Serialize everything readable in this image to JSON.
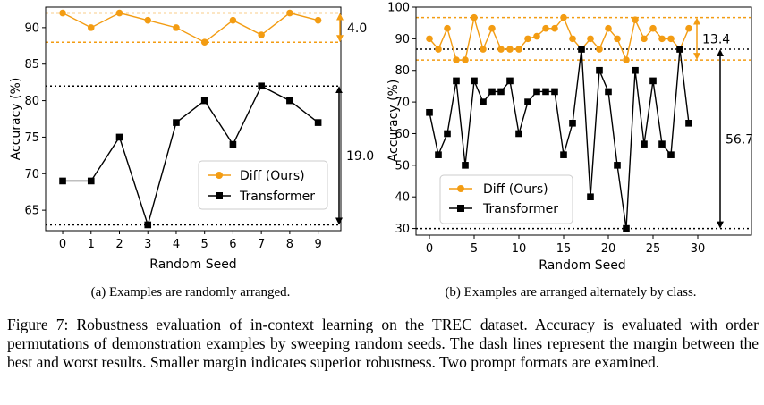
{
  "colors": {
    "diff": "#f39c12",
    "transformer": "#000000"
  },
  "chart_data": [
    {
      "type": "line",
      "xlabel": "Random Seed",
      "ylabel": "Accuracy (%)",
      "xlim": [
        -0.6,
        9.8
      ],
      "ylim": [
        62.2,
        92.8
      ],
      "xticks": [
        0,
        1,
        2,
        3,
        4,
        5,
        6,
        7,
        8,
        9
      ],
      "yticks": [
        65,
        70,
        75,
        80,
        85,
        90
      ],
      "series": [
        {
          "name": "Diff (Ours)",
          "marker": "circle",
          "color": "#f39c12",
          "x": [
            0,
            1,
            2,
            3,
            4,
            5,
            6,
            7,
            8,
            9
          ],
          "values": [
            92,
            90,
            92,
            91,
            90,
            88,
            91,
            89,
            92,
            91
          ]
        },
        {
          "name": "Transformer",
          "marker": "square",
          "color": "#000000",
          "x": [
            0,
            1,
            2,
            3,
            4,
            5,
            6,
            7,
            8,
            9
          ],
          "values": [
            69,
            69,
            75,
            63,
            77,
            80,
            74,
            82,
            80,
            77
          ]
        }
      ],
      "margins": [
        {
          "series": "Diff (Ours)",
          "best": 92,
          "worst": 88,
          "label": "4.0"
        },
        {
          "series": "Transformer",
          "best": 82,
          "worst": 63,
          "label": "19.0"
        }
      ],
      "legend": "center-right",
      "subcaption": "(a) Examples are randomly arranged."
    },
    {
      "type": "line",
      "xlabel": "Random Seed",
      "ylabel": "Accuracy (%)",
      "xlim": [
        -1.5,
        36
      ],
      "ylim": [
        27.9,
        100
      ],
      "xticks": [
        0,
        5,
        10,
        15,
        20,
        25,
        30
      ],
      "yticks": [
        30,
        40,
        50,
        60,
        70,
        80,
        90,
        100
      ],
      "series": [
        {
          "name": "Diff (Ours)",
          "marker": "circle",
          "color": "#f39c12",
          "x": [
            0,
            1,
            2,
            3,
            4,
            5,
            6,
            7,
            8,
            9,
            10,
            11,
            12,
            13,
            14,
            15,
            16,
            17,
            18,
            19,
            20,
            21,
            22,
            23,
            24,
            25,
            26,
            27,
            28,
            29
          ],
          "values": [
            90,
            86.7,
            93.3,
            83.3,
            83.3,
            96.7,
            86.7,
            93.3,
            86.7,
            86.7,
            86.7,
            90,
            90.8,
            93.3,
            93.3,
            96.7,
            90,
            86.7,
            90,
            86.7,
            93.3,
            90,
            83.3,
            96,
            90,
            93.3,
            90,
            90,
            86.7,
            93.3
          ]
        },
        {
          "name": "Transformer",
          "marker": "square",
          "color": "#000000",
          "x": [
            0,
            1,
            2,
            3,
            4,
            5,
            6,
            7,
            8,
            9,
            10,
            11,
            12,
            13,
            14,
            15,
            16,
            17,
            18,
            19,
            20,
            21,
            22,
            23,
            24,
            25,
            26,
            27,
            28,
            29
          ],
          "values": [
            66.7,
            53.3,
            60,
            76.7,
            50,
            76.7,
            70,
            73.3,
            73.3,
            76.7,
            60,
            70,
            73.3,
            73.3,
            73.3,
            53.3,
            63.3,
            86.7,
            40,
            80,
            73.3,
            50,
            30,
            80,
            56.7,
            76.7,
            56.7,
            53.3,
            86.7,
            63.3
          ]
        }
      ],
      "margins": [
        {
          "series": "Diff (Ours)",
          "best": 96.7,
          "worst": 83.3,
          "label": "13.4"
        },
        {
          "series": "Transformer",
          "best": 86.7,
          "worst": 30,
          "label": "56.7"
        }
      ],
      "legend": "lower-left",
      "subcaption": "(b) Examples are arranged alternately by class."
    }
  ],
  "figure_caption": "Figure 7: Robustness evaluation of in-context learning on the TREC dataset. Accuracy is evaluated with order permutations of demonstration examples by sweeping random seeds. The dash lines represent the margin between the best and worst results. Smaller margin indicates superior robustness. Two prompt formats are examined."
}
